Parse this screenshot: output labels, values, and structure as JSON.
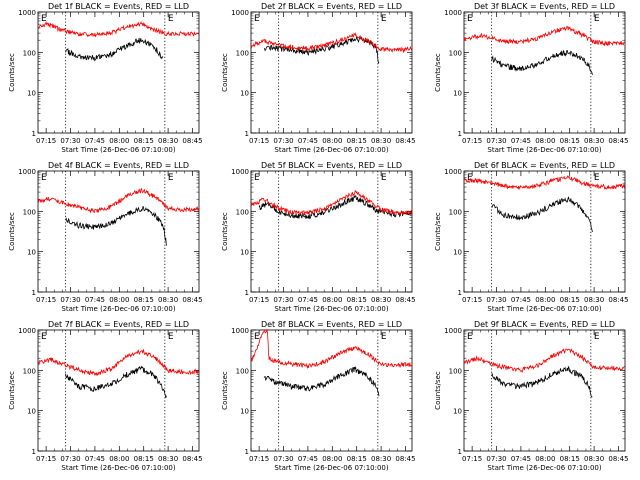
{
  "figure": {
    "ylabel": "Counts/sec",
    "xlabel": "Start Time (26-Dec-06 07:10:00)",
    "x_ticks": [
      "07:15",
      "07:30",
      "07:45",
      "08:00",
      "08:15",
      "08:30",
      "08:45"
    ],
    "y_ticks": [
      "1",
      "10",
      "100",
      "1000"
    ],
    "marker": "E",
    "colors": {
      "events": "#000000",
      "lld": "#ff0000"
    }
  },
  "chart_data": [
    {
      "type": "line",
      "title": "Det 1f BLACK = Events, RED = LLD",
      "xlim": [
        "07:10",
        "08:49"
      ],
      "ylim": [
        1,
        1000
      ],
      "yscale": "log",
      "vlines": [
        "07:27",
        "08:28"
      ],
      "series": [
        {
          "role": "events",
          "x": [
            "07:27",
            "07:35",
            "07:45",
            "07:55",
            "08:05",
            "08:14",
            "08:22",
            "08:27"
          ],
          "values": [
            110,
            80,
            72,
            90,
            150,
            210,
            130,
            70
          ]
        },
        {
          "role": "lld",
          "x": [
            "07:10",
            "07:15",
            "07:25",
            "07:35",
            "07:45",
            "07:55",
            "08:05",
            "08:14",
            "08:22",
            "08:30",
            "08:40",
            "08:49"
          ],
          "values": [
            380,
            520,
            350,
            280,
            270,
            300,
            450,
            500,
            350,
            285,
            290,
            290
          ]
        }
      ]
    },
    {
      "type": "line",
      "title": "Det 2f BLACK = Events, RED = LLD",
      "xlim": [
        "07:10",
        "08:49"
      ],
      "ylim": [
        1,
        1000
      ],
      "yscale": "log",
      "vlines": [
        "07:27",
        "08:28"
      ],
      "series": [
        {
          "role": "events",
          "x": [
            "07:18",
            "07:25",
            "07:35",
            "07:45",
            "07:55",
            "08:05",
            "08:14",
            "08:22",
            "08:27",
            "08:29"
          ],
          "values": [
            120,
            130,
            110,
            100,
            120,
            160,
            220,
            190,
            130,
            45
          ]
        },
        {
          "role": "lld",
          "x": [
            "07:10",
            "07:18",
            "07:25",
            "07:35",
            "07:45",
            "07:55",
            "08:05",
            "08:14",
            "08:22",
            "08:30",
            "08:40",
            "08:49"
          ],
          "values": [
            150,
            185,
            160,
            135,
            125,
            145,
            200,
            270,
            190,
            120,
            115,
            120
          ]
        }
      ]
    },
    {
      "type": "line",
      "title": "Det 3f BLACK = Events, RED = LLD",
      "xlim": [
        "07:10",
        "08:49"
      ],
      "ylim": [
        1,
        1000
      ],
      "yscale": "log",
      "vlines": [
        "07:27",
        "08:28"
      ],
      "series": [
        {
          "role": "events",
          "x": [
            "07:27",
            "07:35",
            "07:45",
            "07:55",
            "08:05",
            "08:14",
            "08:22",
            "08:27",
            "08:29"
          ],
          "values": [
            70,
            45,
            40,
            50,
            85,
            100,
            75,
            45,
            25
          ]
        },
        {
          "role": "lld",
          "x": [
            "07:10",
            "07:20",
            "07:35",
            "07:45",
            "07:55",
            "08:05",
            "08:14",
            "08:22",
            "08:30",
            "08:40",
            "08:49"
          ],
          "values": [
            210,
            260,
            190,
            180,
            220,
            330,
            400,
            280,
            180,
            165,
            175
          ]
        }
      ]
    },
    {
      "type": "line",
      "title": "Det 4f BLACK = Events, RED = LLD",
      "xlim": [
        "07:10",
        "08:49"
      ],
      "ylim": [
        1,
        1000
      ],
      "yscale": "log",
      "vlines": [
        "07:27",
        "08:28"
      ],
      "series": [
        {
          "role": "events",
          "x": [
            "07:27",
            "07:35",
            "07:45",
            "07:55",
            "08:05",
            "08:14",
            "08:22",
            "08:27",
            "08:29"
          ],
          "values": [
            60,
            45,
            40,
            50,
            85,
            120,
            80,
            45,
            15
          ]
        },
        {
          "role": "lld",
          "x": [
            "07:10",
            "07:18",
            "07:30",
            "07:45",
            "07:55",
            "08:05",
            "08:14",
            "08:22",
            "08:30",
            "08:40",
            "08:49"
          ],
          "values": [
            170,
            210,
            140,
            100,
            130,
            250,
            330,
            230,
            120,
            110,
            115
          ]
        }
      ]
    },
    {
      "type": "line",
      "title": "Det 5f BLACK = Events, RED = LLD",
      "xlim": [
        "07:10",
        "08:49"
      ],
      "ylim": [
        1,
        1000
      ],
      "yscale": "log",
      "vlines": [
        "07:27",
        "08:28"
      ],
      "series": [
        {
          "role": "events",
          "x": [
            "07:15",
            "07:20",
            "07:27",
            "07:35",
            "07:45",
            "07:55",
            "08:05",
            "08:14",
            "08:22",
            "08:28",
            "08:40",
            "08:49"
          ],
          "values": [
            120,
            160,
            95,
            80,
            75,
            95,
            150,
            210,
            150,
            100,
            85,
            90
          ]
        },
        {
          "role": "lld",
          "x": [
            "07:10",
            "07:18",
            "07:27",
            "07:35",
            "07:45",
            "07:55",
            "08:05",
            "08:14",
            "08:22",
            "08:30",
            "08:40",
            "08:49"
          ],
          "values": [
            140,
            200,
            120,
            95,
            90,
            115,
            190,
            290,
            190,
            110,
            90,
            95
          ]
        }
      ]
    },
    {
      "type": "line",
      "title": "Det 6f BLACK = Events, RED = LLD",
      "xlim": [
        "07:10",
        "08:49"
      ],
      "ylim": [
        1,
        1000
      ],
      "yscale": "log",
      "vlines": [
        "07:27",
        "08:28"
      ],
      "series": [
        {
          "role": "events",
          "x": [
            "07:27",
            "07:35",
            "07:45",
            "07:55",
            "08:05",
            "08:14",
            "08:22",
            "08:27",
            "08:29"
          ],
          "values": [
            140,
            80,
            70,
            90,
            150,
            200,
            120,
            65,
            30
          ]
        },
        {
          "role": "lld",
          "x": [
            "07:10",
            "07:20",
            "07:35",
            "07:45",
            "07:55",
            "08:05",
            "08:14",
            "08:22",
            "08:30",
            "08:40",
            "08:49"
          ],
          "values": [
            600,
            560,
            430,
            390,
            430,
            580,
            700,
            520,
            420,
            400,
            420
          ]
        }
      ]
    },
    {
      "type": "line",
      "title": "Det 7f BLACK = Events, RED = LLD",
      "xlim": [
        "07:10",
        "08:49"
      ],
      "ylim": [
        1,
        1000
      ],
      "yscale": "log",
      "vlines": [
        "07:27",
        "08:28"
      ],
      "series": [
        {
          "role": "events",
          "x": [
            "07:27",
            "07:35",
            "07:45",
            "07:55",
            "08:05",
            "08:14",
            "08:22",
            "08:27",
            "08:29"
          ],
          "values": [
            75,
            40,
            35,
            45,
            80,
            110,
            70,
            35,
            20
          ]
        },
        {
          "role": "lld",
          "x": [
            "07:10",
            "07:18",
            "07:30",
            "07:45",
            "07:55",
            "08:05",
            "08:14",
            "08:22",
            "08:30",
            "08:40",
            "08:49"
          ],
          "values": [
            150,
            185,
            120,
            80,
            110,
            220,
            300,
            200,
            100,
            90,
            95
          ]
        }
      ]
    },
    {
      "type": "line",
      "title": "Det 8f BLACK = Events, RED = LLD",
      "xlim": [
        "07:10",
        "08:49"
      ],
      "ylim": [
        1,
        1000
      ],
      "yscale": "log",
      "vlines": [
        "07:27",
        "08:28"
      ],
      "series": [
        {
          "role": "events",
          "x": [
            "07:18",
            "07:25",
            "07:35",
            "07:45",
            "07:55",
            "08:05",
            "08:14",
            "08:22",
            "08:27",
            "08:29"
          ],
          "values": [
            70,
            50,
            40,
            35,
            45,
            75,
            105,
            70,
            40,
            20
          ]
        },
        {
          "role": "lld",
          "x": [
            "07:10",
            "07:18",
            "07:19",
            "07:20",
            "07:21",
            "07:30",
            "07:45",
            "07:55",
            "08:05",
            "08:14",
            "08:22",
            "08:30",
            "08:40",
            "08:49"
          ],
          "values": [
            150,
            1000,
            900,
            1000,
            190,
            150,
            130,
            160,
            270,
            360,
            250,
            140,
            135,
            140
          ]
        }
      ]
    },
    {
      "type": "line",
      "title": "Det 9f BLACK = Events, RED = LLD",
      "xlim": [
        "07:10",
        "08:49"
      ],
      "ylim": [
        1,
        1000
      ],
      "yscale": "log",
      "vlines": [
        "07:27",
        "08:28"
      ],
      "series": [
        {
          "role": "events",
          "x": [
            "07:27",
            "07:35",
            "07:45",
            "07:55",
            "08:05",
            "08:14",
            "08:22",
            "08:27",
            "08:29"
          ],
          "values": [
            75,
            45,
            40,
            50,
            85,
            110,
            70,
            40,
            20
          ]
        },
        {
          "role": "lld",
          "x": [
            "07:10",
            "07:18",
            "07:30",
            "07:45",
            "07:55",
            "08:05",
            "08:14",
            "08:22",
            "08:30",
            "08:40",
            "08:49"
          ],
          "values": [
            150,
            200,
            130,
            100,
            130,
            240,
            330,
            220,
            120,
            110,
            115
          ]
        }
      ]
    }
  ]
}
